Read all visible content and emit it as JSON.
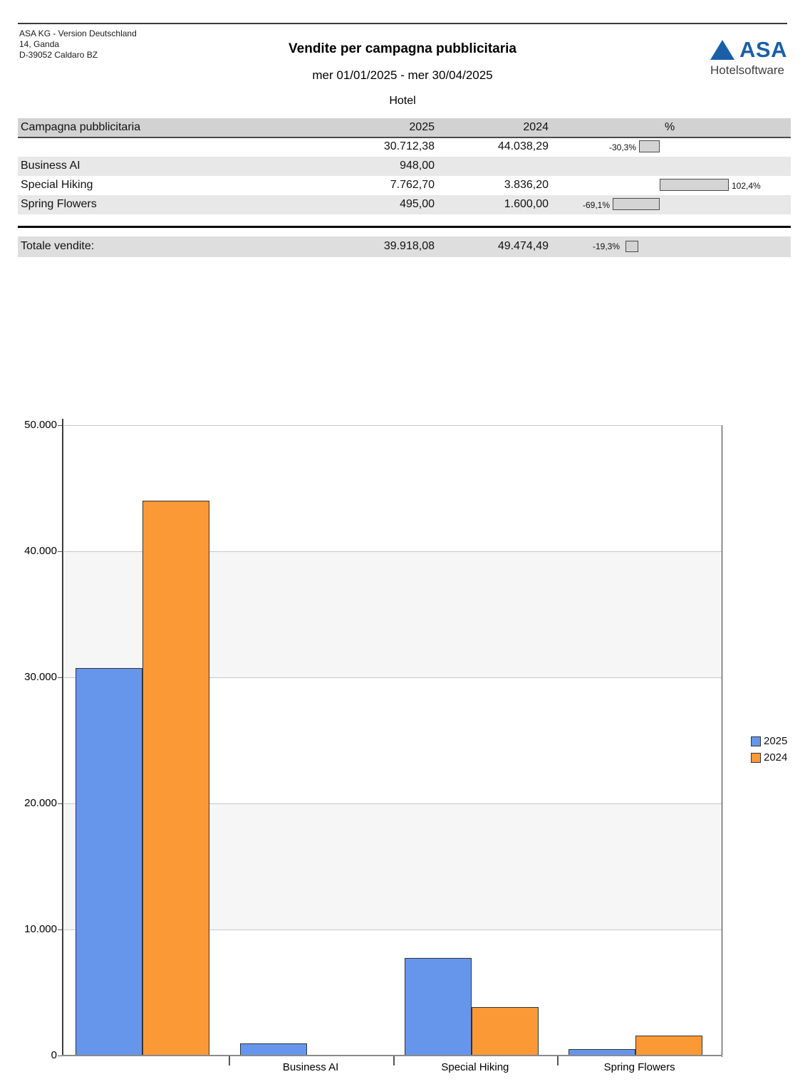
{
  "header": {
    "company_lines": [
      "ASA KG - Version Deutschland",
      "14, Ganda",
      "D-39052 Caldaro BZ"
    ],
    "title": "Vendite per campagna pubblicitaria",
    "subtitle": "mer 01/01/2025 - mer 30/04/2025",
    "scope": "Hotel",
    "logo": {
      "brand": "ASA",
      "tagline": "Hotelsoftware",
      "color": "#1b5fa7"
    }
  },
  "table": {
    "columns": [
      "Campagna pubblicitaria",
      "2025",
      "2024",
      "%"
    ],
    "rows": [
      {
        "label": "",
        "v2025": "30.712,38",
        "v2024": "44.038,29",
        "pct": "-30,3%",
        "pct_value": -30.3
      },
      {
        "label": "Business AI",
        "v2025": "948,00",
        "v2024": "",
        "pct": "",
        "pct_value": null
      },
      {
        "label": "Special Hiking",
        "v2025": "7.762,70",
        "v2024": "3.836,20",
        "pct": "102,4%",
        "pct_value": 102.4
      },
      {
        "label": "Spring Flowers",
        "v2025": "495,00",
        "v2024": "1.600,00",
        "pct": "-69,1%",
        "pct_value": -69.1
      }
    ],
    "total": {
      "label": "Totale vendite:",
      "v2025": "39.918,08",
      "v2024": "49.474,49",
      "pct": "-19,3%",
      "pct_value": -19.3
    }
  },
  "chart_data": {
    "type": "bar",
    "categories": [
      "",
      "Business AI",
      "Special Hiking",
      "Spring Flowers"
    ],
    "series": [
      {
        "name": "2025",
        "color": "#6596ec",
        "values": [
          30712.38,
          948.0,
          7762.7,
          495.0
        ]
      },
      {
        "name": "2024",
        "color": "#fc9937",
        "values": [
          44038.29,
          0,
          3836.2,
          1600.0
        ]
      }
    ],
    "title": "",
    "xlabel": "",
    "ylabel": "",
    "ylim": [
      0,
      50000
    ],
    "ytick_step": 10000,
    "ytick_labels": [
      "0",
      "10.000",
      "20.000",
      "30.000",
      "40.000",
      "50.000"
    ],
    "grid": true,
    "gray_bands": [
      [
        10000,
        20000
      ],
      [
        30000,
        40000
      ]
    ],
    "legend_position": "right"
  }
}
